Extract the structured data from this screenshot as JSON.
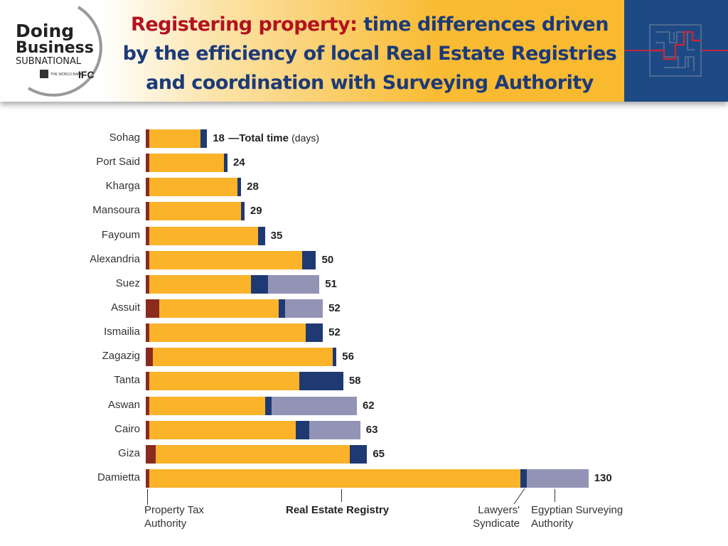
{
  "header": {
    "title_red": "Registering property:",
    "title_rest": "time differences driven by the efficiency of local Real Estate Registries and coordination with Surveying Authority",
    "logo": {
      "line1": "Doing",
      "line2": "Business",
      "line3": "SUBNATIONAL",
      "partner1": "THE WORLD BANK",
      "partner2": "IFC"
    },
    "icon": "maze-icon"
  },
  "chart_data": {
    "type": "bar",
    "orientation": "horizontal",
    "stacked": true,
    "unit_note": "Total time (days)",
    "categories": [
      "Sohag",
      "Port Said",
      "Kharga",
      "Mansoura",
      "Fayoum",
      "Alexandria",
      "Suez",
      "Assuit",
      "Ismailia",
      "Zagazig",
      "Tanta",
      "Aswan",
      "Cairo",
      "Giza",
      "Damietta"
    ],
    "totals": [
      18,
      24,
      28,
      29,
      35,
      50,
      51,
      52,
      52,
      56,
      58,
      62,
      63,
      65,
      130
    ],
    "series": [
      {
        "name": "Property Tax Authority",
        "color": "#8b2a1e",
        "values": [
          1,
          1,
          1,
          1,
          1,
          1,
          1,
          4,
          1,
          2,
          1,
          1,
          1,
          3,
          1
        ]
      },
      {
        "name": "Real Estate Registry",
        "color": "#fbb32a",
        "values": [
          15,
          22,
          26,
          27,
          32,
          45,
          30,
          35,
          46,
          53,
          44,
          34,
          43,
          57,
          109
        ]
      },
      {
        "name": "Lawyers' Syndicate",
        "color": "#1f3a73",
        "values": [
          2,
          1,
          1,
          1,
          2,
          4,
          5,
          2,
          5,
          1,
          13,
          2,
          4,
          5,
          2
        ]
      },
      {
        "name": "Egyptian Surveying Authority",
        "color": "#9393b5",
        "values": [
          0,
          0,
          0,
          0,
          0,
          0,
          15,
          11,
          0,
          0,
          0,
          25,
          15,
          0,
          18
        ]
      }
    ],
    "grid": false,
    "legend": "bottom"
  }
}
